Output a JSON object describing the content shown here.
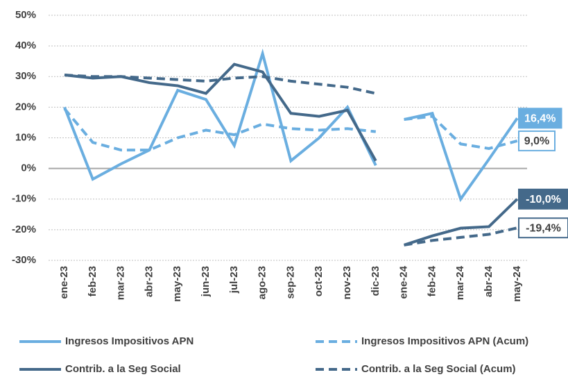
{
  "chart_data": {
    "type": "line",
    "categories": [
      "ene-23",
      "feb-23",
      "mar-23",
      "abr-23",
      "may-23",
      "jun-23",
      "jul-23",
      "ago-23",
      "sep-23",
      "oct-23",
      "nov-23",
      "dic-23",
      "ene-24",
      "feb-24",
      "mar-24",
      "abr-24",
      "may-24"
    ],
    "break_before": "ene-24",
    "ylim": [
      -30,
      50
    ],
    "yticks": [
      {
        "value": -30,
        "label": "-30%"
      },
      {
        "value": -20,
        "label": "-20%"
      },
      {
        "value": -10,
        "label": "-10%"
      },
      {
        "value": 0,
        "label": "0%"
      },
      {
        "value": 10,
        "label": "10%"
      },
      {
        "value": 20,
        "label": "20%"
      },
      {
        "value": 30,
        "label": "30%"
      },
      {
        "value": 40,
        "label": "40%"
      },
      {
        "value": 50,
        "label": "50%"
      }
    ],
    "grid": true,
    "series": [
      {
        "name": "Ingresos Impositivos APN",
        "color": "#6aaee0",
        "dashed": false,
        "values": [
          20,
          -3.5,
          1.5,
          6,
          25.5,
          22.5,
          7.5,
          37.5,
          2.5,
          10,
          20,
          1,
          16,
          18,
          -10,
          3,
          16.4
        ],
        "value_labels": [
          null,
          null,
          null,
          null,
          null,
          null,
          null,
          null,
          null,
          null,
          null,
          null,
          null,
          null,
          null,
          null,
          "16,4%"
        ]
      },
      {
        "name": "Ingresos Impositivos APN (Acum)",
        "color": "#6aaee0",
        "dashed": true,
        "values": [
          19.5,
          8.5,
          6,
          6,
          10,
          12.5,
          11,
          14.5,
          13,
          12.5,
          13,
          12,
          16,
          17,
          8,
          6.5,
          9
        ],
        "value_labels": [
          null,
          null,
          null,
          null,
          null,
          null,
          null,
          null,
          null,
          null,
          null,
          null,
          null,
          null,
          null,
          null,
          "9,0%"
        ]
      },
      {
        "name": "Contrib. a la Seg Social",
        "color": "#44698a",
        "dashed": false,
        "values": [
          30.5,
          29.5,
          30,
          28,
          27,
          24.5,
          34,
          31.5,
          18,
          17,
          19,
          2.5,
          -25,
          -22,
          -19.5,
          -19,
          -10
        ],
        "value_labels": [
          null,
          null,
          null,
          null,
          null,
          null,
          null,
          null,
          null,
          null,
          null,
          null,
          null,
          null,
          null,
          null,
          "-10,0%"
        ]
      },
      {
        "name": "Contrib. a la Seg Social (Acum)",
        "color": "#44698a",
        "dashed": true,
        "values": [
          30.5,
          30,
          30,
          29.5,
          29,
          28.5,
          29.5,
          30,
          28.5,
          27.5,
          26.5,
          24.5,
          -25,
          -23.5,
          -22.5,
          -21.5,
          -19.4
        ],
        "value_labels": [
          null,
          null,
          null,
          null,
          null,
          null,
          null,
          null,
          null,
          null,
          null,
          null,
          null,
          null,
          null,
          null,
          "-19,4%"
        ]
      }
    ]
  }
}
